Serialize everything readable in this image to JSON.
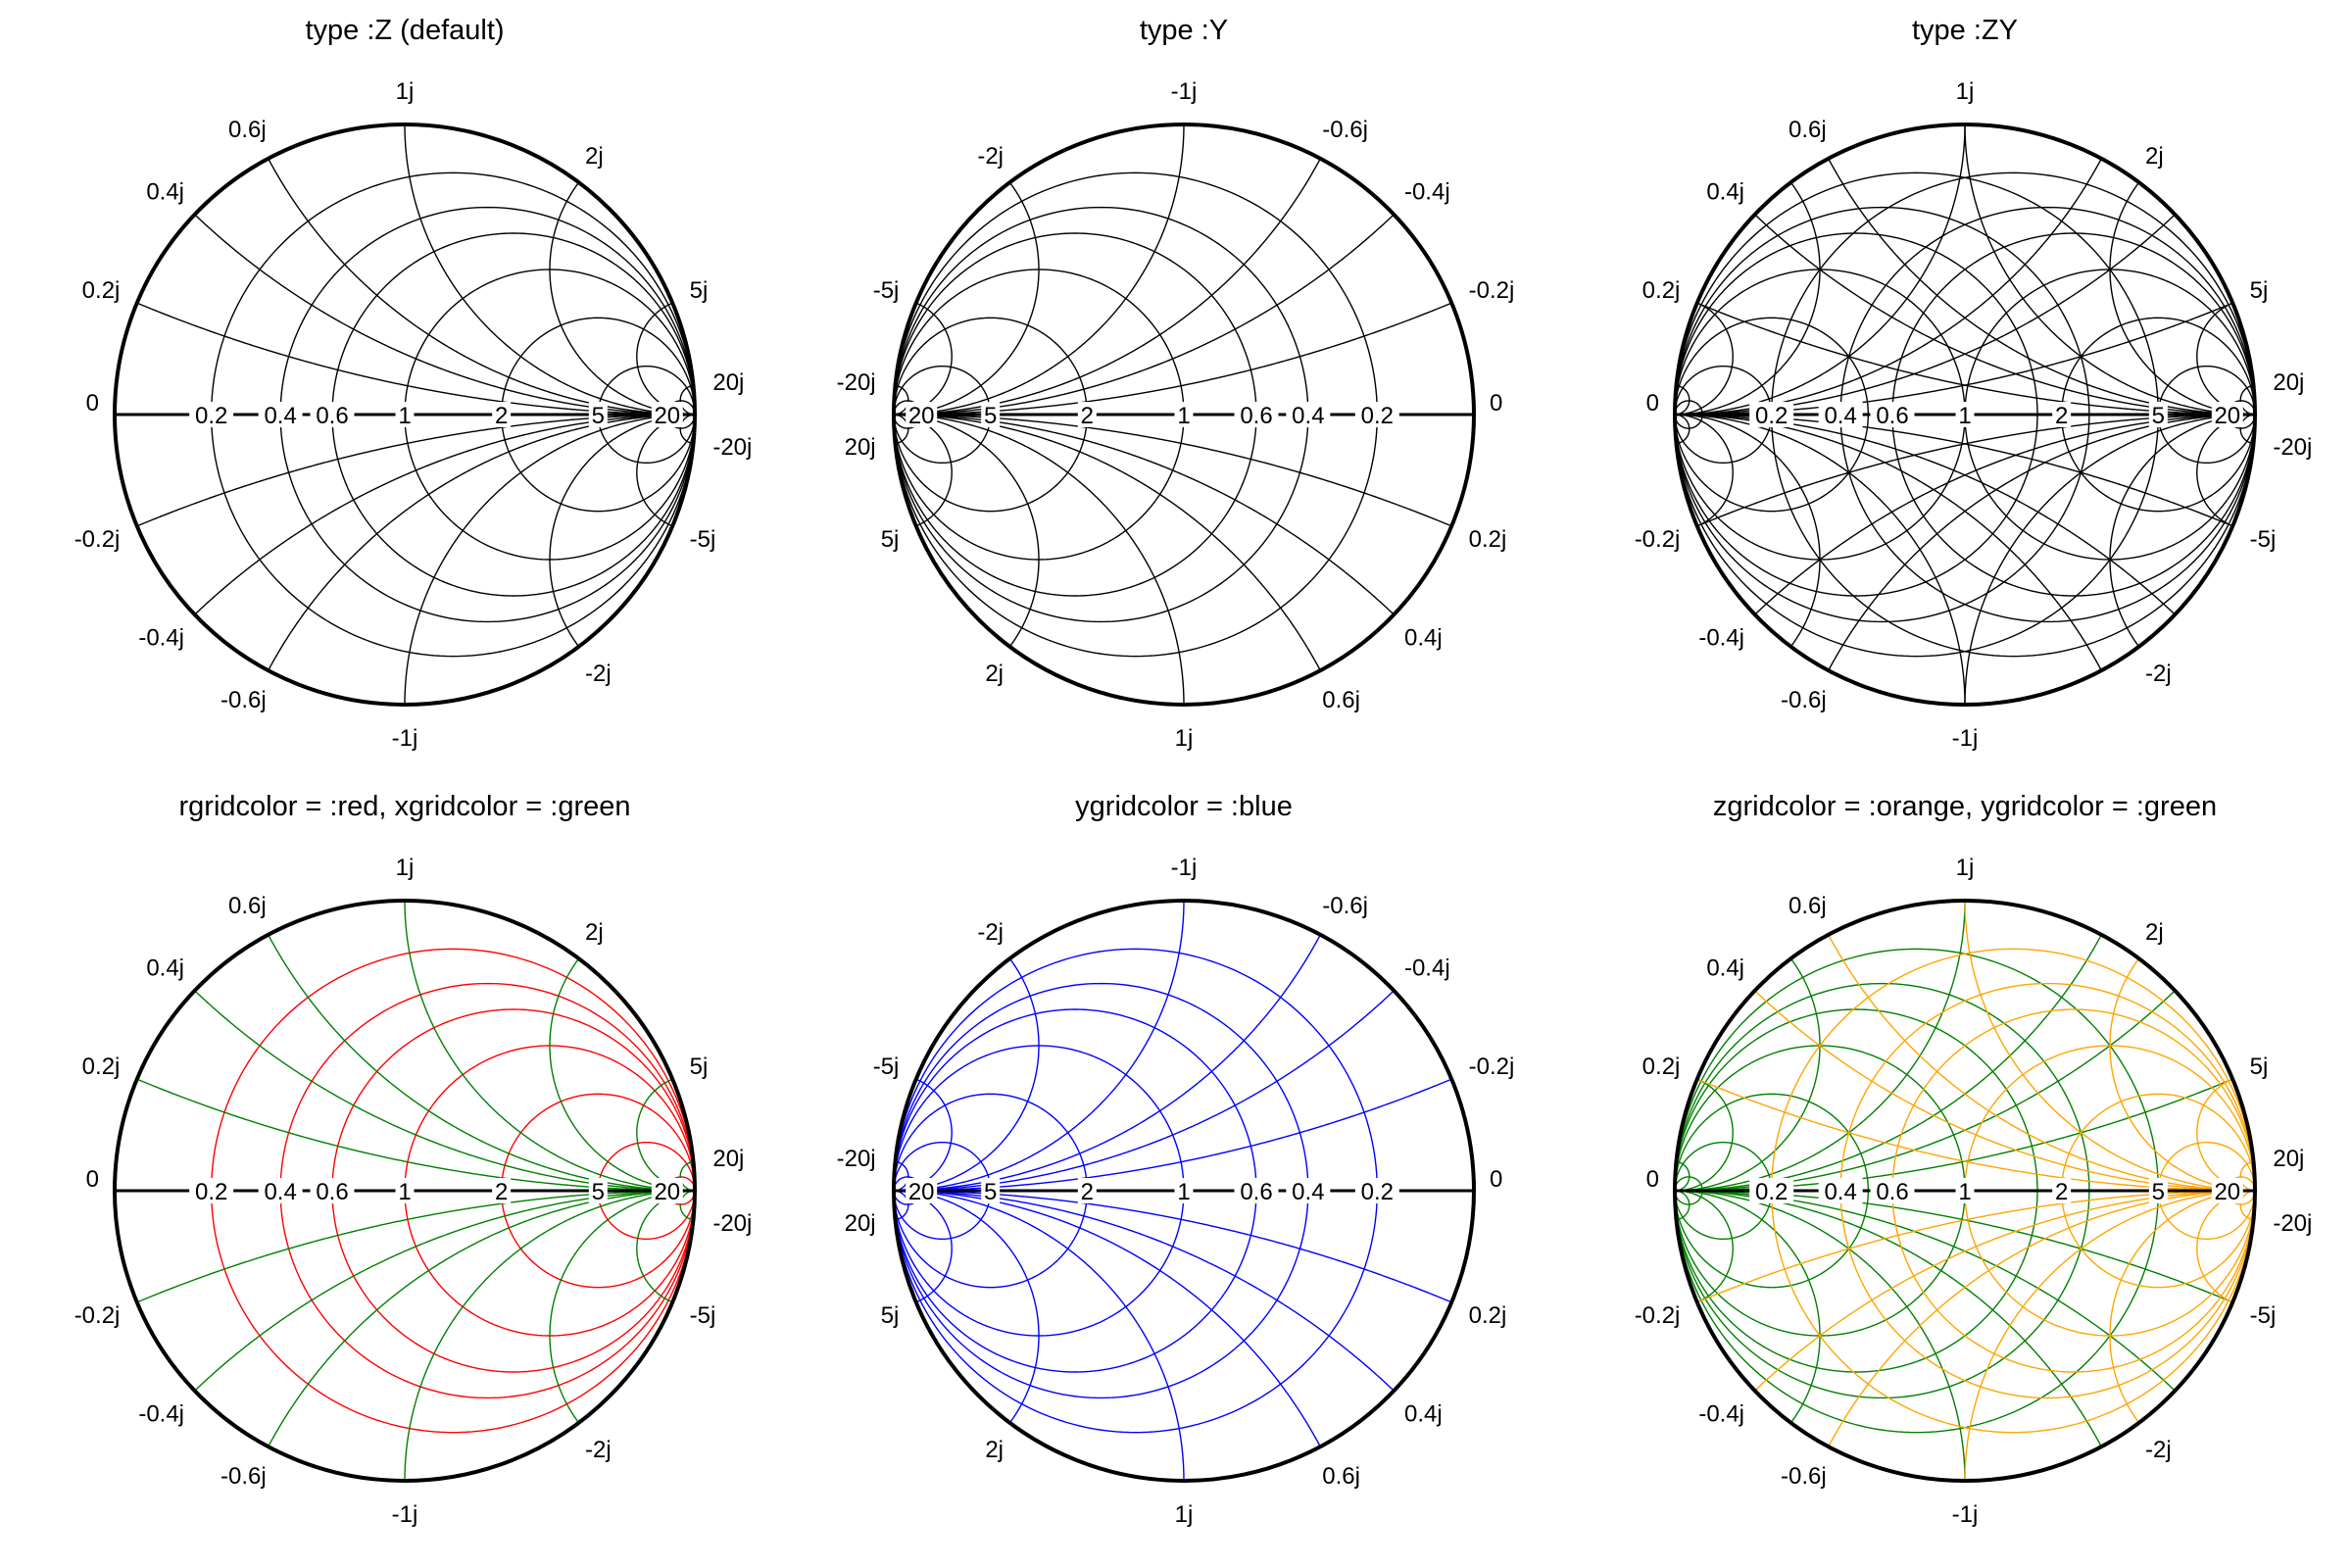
{
  "chart_data": [
    {
      "type": "smith",
      "title": "type :Z (default)",
      "grid_type": "Z",
      "real_ticks": [
        0.2,
        0.4,
        0.6,
        1,
        2,
        5,
        20
      ],
      "real_tick_labels": [
        "0.2",
        "0.4",
        "0.6",
        "1",
        "2",
        "5",
        "20"
      ],
      "imag_ticks": [
        0.2,
        0.4,
        0.6,
        1,
        2,
        5,
        20
      ],
      "imag_tick_labels_pos": [
        "0.2j",
        "0.4j",
        "0.6j",
        "1j",
        "2j",
        "5j",
        "20j"
      ],
      "imag_tick_labels_neg": [
        "-0.2j",
        "-0.4j",
        "-0.6j",
        "-1j",
        "-2j",
        "-5j",
        "-20j"
      ],
      "zero_label": "0",
      "colors": {
        "r_grid": "#000000",
        "x_grid": "#000000",
        "z_grid": "#000000",
        "y_grid": "#000000"
      }
    },
    {
      "type": "smith",
      "title": "type :Y",
      "grid_type": "Y",
      "real_ticks": [
        0.2,
        0.4,
        0.6,
        1,
        2,
        5,
        20
      ],
      "real_tick_labels": [
        "0.2",
        "0.4",
        "0.6",
        "1",
        "2",
        "5",
        "20"
      ],
      "imag_ticks": [
        0.2,
        0.4,
        0.6,
        1,
        2,
        5,
        20
      ],
      "imag_tick_labels_pos": [
        "0.2j",
        "0.4j",
        "0.6j",
        "1j",
        "2j",
        "5j",
        "20j"
      ],
      "imag_tick_labels_neg": [
        "-0.2j",
        "-0.4j",
        "-0.6j",
        "-1j",
        "-2j",
        "-5j",
        "-20j"
      ],
      "zero_label": "0",
      "colors": {
        "r_grid": "#000000",
        "x_grid": "#000000",
        "z_grid": "#000000",
        "y_grid": "#000000"
      }
    },
    {
      "type": "smith",
      "title": "type :ZY",
      "grid_type": "ZY",
      "real_ticks": [
        0.2,
        0.4,
        0.6,
        1,
        2,
        5,
        20
      ],
      "real_tick_labels": [
        "0.2",
        "0.4",
        "0.6",
        "1",
        "2",
        "5",
        "20"
      ],
      "imag_ticks": [
        0.2,
        0.4,
        0.6,
        1,
        2,
        5,
        20
      ],
      "imag_tick_labels_pos": [
        "0.2j",
        "0.4j",
        "0.6j",
        "1j",
        "2j",
        "5j",
        "20j"
      ],
      "imag_tick_labels_neg": [
        "-0.2j",
        "-0.4j",
        "-0.6j",
        "-1j",
        "-2j",
        "-5j",
        "-20j"
      ],
      "zero_label": "0",
      "colors": {
        "r_grid": "#000000",
        "x_grid": "#000000",
        "z_grid": "#000000",
        "y_grid": "#000000"
      }
    },
    {
      "type": "smith",
      "title": "rgridcolor = :red, xgridcolor = :green",
      "grid_type": "Z",
      "real_ticks": [
        0.2,
        0.4,
        0.6,
        1,
        2,
        5,
        20
      ],
      "real_tick_labels": [
        "0.2",
        "0.4",
        "0.6",
        "1",
        "2",
        "5",
        "20"
      ],
      "imag_ticks": [
        0.2,
        0.4,
        0.6,
        1,
        2,
        5,
        20
      ],
      "imag_tick_labels_pos": [
        "0.2j",
        "0.4j",
        "0.6j",
        "1j",
        "2j",
        "5j",
        "20j"
      ],
      "imag_tick_labels_neg": [
        "-0.2j",
        "-0.4j",
        "-0.6j",
        "-1j",
        "-2j",
        "-5j",
        "-20j"
      ],
      "zero_label": "0",
      "colors": {
        "r_grid": "#ff0000",
        "x_grid": "#008000",
        "z_grid": "#000000",
        "y_grid": "#000000"
      }
    },
    {
      "type": "smith",
      "title": "ygridcolor = :blue",
      "grid_type": "Y",
      "real_ticks": [
        0.2,
        0.4,
        0.6,
        1,
        2,
        5,
        20
      ],
      "real_tick_labels": [
        "0.2",
        "0.4",
        "0.6",
        "1",
        "2",
        "5",
        "20"
      ],
      "imag_ticks": [
        0.2,
        0.4,
        0.6,
        1,
        2,
        5,
        20
      ],
      "imag_tick_labels_pos": [
        "0.2j",
        "0.4j",
        "0.6j",
        "1j",
        "2j",
        "5j",
        "20j"
      ],
      "imag_tick_labels_neg": [
        "-0.2j",
        "-0.4j",
        "-0.6j",
        "-1j",
        "-2j",
        "-5j",
        "-20j"
      ],
      "zero_label": "0",
      "colors": {
        "r_grid": "#0000ff",
        "x_grid": "#0000ff",
        "z_grid": "#000000",
        "y_grid": "#0000ff"
      }
    },
    {
      "type": "smith",
      "title": "zgridcolor = :orange, ygridcolor = :green",
      "grid_type": "ZY",
      "real_ticks": [
        0.2,
        0.4,
        0.6,
        1,
        2,
        5,
        20
      ],
      "real_tick_labels": [
        "0.2",
        "0.4",
        "0.6",
        "1",
        "2",
        "5",
        "20"
      ],
      "imag_ticks": [
        0.2,
        0.4,
        0.6,
        1,
        2,
        5,
        20
      ],
      "imag_tick_labels_pos": [
        "0.2j",
        "0.4j",
        "0.6j",
        "1j",
        "2j",
        "5j",
        "20j"
      ],
      "imag_tick_labels_neg": [
        "-0.2j",
        "-0.4j",
        "-0.6j",
        "-1j",
        "-2j",
        "-5j",
        "-20j"
      ],
      "zero_label": "0",
      "colors": {
        "r_grid": "#ffa500",
        "x_grid": "#ffa500",
        "z_grid": "#ffa500",
        "y_grid": "#008000"
      }
    }
  ]
}
